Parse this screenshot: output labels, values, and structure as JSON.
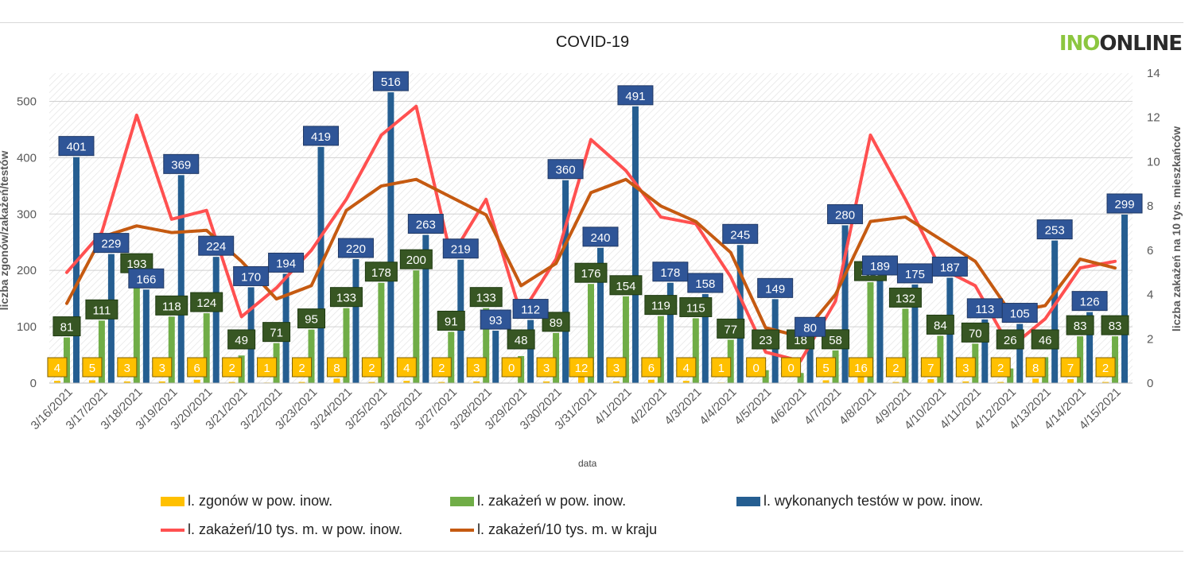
{
  "logo": {
    "part1": "INO",
    "part2": "ONLINE"
  },
  "chart_data": {
    "type": "bar",
    "title": "COVID-19",
    "xlabel": "data",
    "ylabel": "liczba zgonów/zakażeń/testów",
    "y2label": "liczba zakażeń na 10 tys. mieszkańców",
    "ylim": [
      0,
      550
    ],
    "y2lim": [
      0,
      14
    ],
    "yticks": [
      0,
      100,
      200,
      300,
      400,
      500
    ],
    "y2ticks": [
      0,
      2,
      4,
      6,
      8,
      10,
      12,
      14
    ],
    "categories": [
      "3/16/2021",
      "3/17/2021",
      "3/18/2021",
      "3/19/2021",
      "3/20/2021",
      "3/21/2021",
      "3/22/2021",
      "3/23/2021",
      "3/24/2021",
      "3/25/2021",
      "3/26/2021",
      "3/27/2021",
      "3/28/2021",
      "3/29/2021",
      "3/30/2021",
      "3/31/2021",
      "4/1/2021",
      "4/2/2021",
      "4/3/2021",
      "4/4/2021",
      "4/5/2021",
      "4/6/2021",
      "4/7/2021",
      "4/8/2021",
      "4/9/2021",
      "4/10/2021",
      "4/11/2021",
      "4/12/2021",
      "4/13/2021",
      "4/14/2021",
      "4/15/2021"
    ],
    "series": [
      {
        "name": "l. zgonów w pow. inow.",
        "kind": "bar",
        "axis": "left",
        "color": "#ffc000",
        "values": [
          4,
          5,
          3,
          3,
          6,
          2,
          1,
          2,
          8,
          2,
          4,
          2,
          3,
          0,
          3,
          12,
          3,
          6,
          4,
          1,
          0,
          0,
          5,
          16,
          2,
          7,
          3,
          2,
          8,
          7,
          2
        ]
      },
      {
        "name": "l. zakażeń w pow. inow.",
        "kind": "bar",
        "axis": "left",
        "color": "#70ad47",
        "values": [
          81,
          111,
          193,
          118,
          124,
          49,
          71,
          95,
          133,
          178,
          200,
          91,
          133,
          48,
          89,
          176,
          154,
          119,
          115,
          77,
          23,
          18,
          58,
          179,
          132,
          84,
          70,
          26,
          46,
          83,
          83
        ]
      },
      {
        "name": "l. wykonanych testów w pow. inow.",
        "kind": "bar",
        "axis": "left",
        "color": "#255e91",
        "values": [
          401,
          229,
          166,
          369,
          224,
          170,
          194,
          419,
          220,
          516,
          263,
          219,
          93,
          112,
          360,
          240,
          491,
          178,
          158,
          245,
          149,
          80,
          280,
          189,
          175,
          187,
          113,
          105,
          253,
          126,
          299
        ]
      },
      {
        "name": "l. zakażeń/10 tys. m. w pow. inow.",
        "kind": "line",
        "axis": "right",
        "color": "#ff5050",
        "values": [
          5.0,
          6.8,
          12.1,
          7.4,
          7.8,
          3.0,
          4.3,
          6.0,
          8.3,
          11.2,
          12.5,
          5.7,
          8.3,
          3.1,
          5.6,
          11.0,
          9.6,
          7.5,
          7.2,
          4.8,
          1.4,
          1.0,
          3.7,
          11.2,
          8.3,
          5.2,
          4.4,
          1.6,
          2.9,
          5.2,
          5.5
        ]
      },
      {
        "name": "l. zakażeń/10 tys. m. w kraju",
        "kind": "line",
        "axis": "right",
        "color": "#c55a11",
        "values": [
          3.6,
          6.6,
          7.1,
          6.8,
          6.9,
          5.5,
          3.8,
          4.4,
          7.8,
          8.9,
          9.2,
          8.4,
          7.6,
          4.4,
          5.4,
          8.6,
          9.2,
          8.0,
          7.3,
          5.9,
          2.5,
          2.1,
          4.0,
          7.3,
          7.5,
          6.5,
          5.5,
          3.2,
          3.5,
          5.6,
          5.2
        ]
      }
    ],
    "legend_position": "bottom",
    "grid": true
  }
}
